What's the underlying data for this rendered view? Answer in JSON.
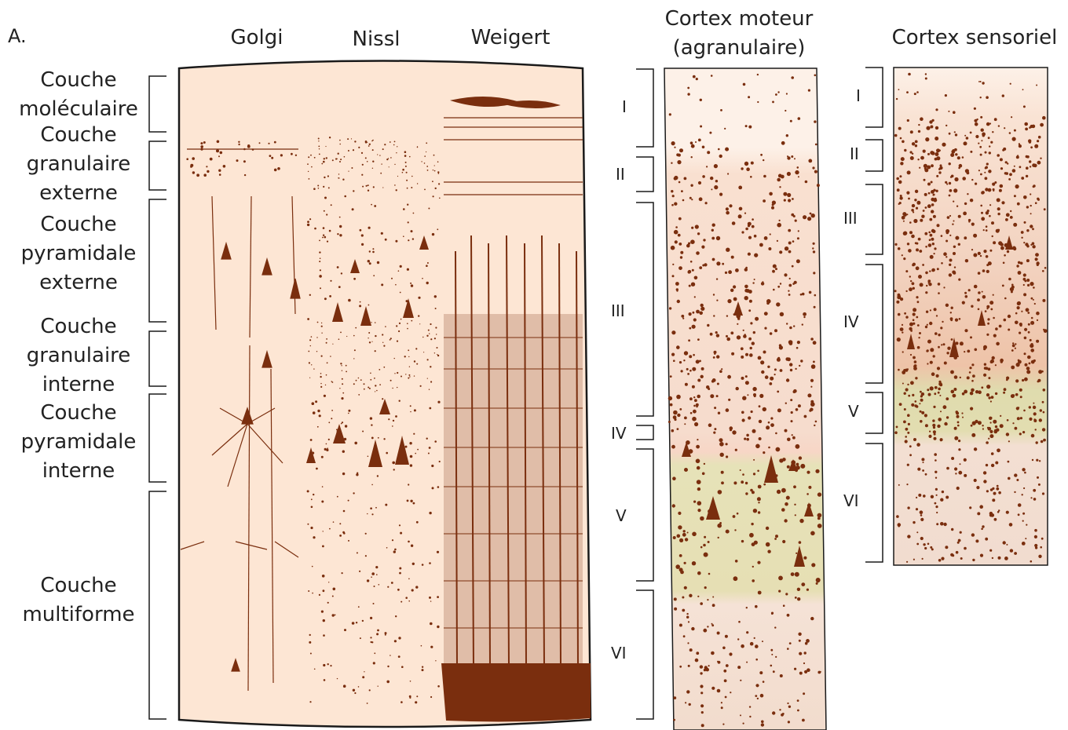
{
  "figure": {
    "panel_letter": "A.",
    "stain_headers": [
      "Golgi",
      "Nissl",
      "Weigert"
    ],
    "layers_left": [
      {
        "lines": [
          "Couche",
          "moléculaire"
        ]
      },
      {
        "lines": [
          "Couche",
          "granulaire",
          "externe"
        ]
      },
      {
        "lines": [
          "Couche",
          "pyramidale",
          "externe"
        ]
      },
      {
        "lines": [
          "Couche",
          "granulaire",
          "interne"
        ]
      },
      {
        "lines": [
          "Couche",
          "pyramidale",
          "interne"
        ]
      },
      {
        "lines": [
          "Couche",
          "multiforme"
        ]
      }
    ],
    "motor_cortex": {
      "title_line1": "Cortex moteur",
      "title_line2": "(agranulaire)",
      "layers": [
        "I",
        "II",
        "III",
        "IV",
        "V",
        "VI"
      ]
    },
    "sensory_cortex": {
      "title": "Cortex sensoriel",
      "layers": [
        "I",
        "II",
        "III",
        "IV",
        "V",
        "VI"
      ]
    },
    "colors": {
      "tissue": "#fde6d4",
      "stain": "#7a2e0e",
      "layer_v_tint": "#e6dfb4",
      "frame": "#1a1a1a"
    }
  }
}
